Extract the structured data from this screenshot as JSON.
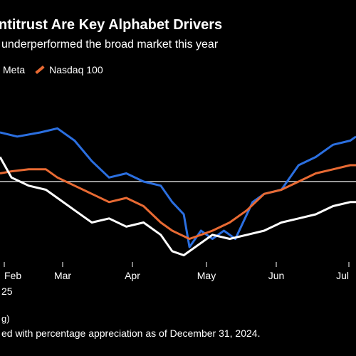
{
  "chart_data": {
    "type": "line",
    "title": "ntitrust Are Key Alphabet Drivers",
    "subtitle": "underperformed the broad market this year",
    "xlabel": "",
    "ylabel": "",
    "x_ticks": [
      "Feb",
      "Mar",
      "Apr",
      "May",
      "Jun",
      "Jul"
    ],
    "x_tick_sublabel": "25",
    "x_range": [
      0,
      124
    ],
    "ylim": [
      -20,
      20
    ],
    "baseline_y": 0,
    "legend_placement": "top-left",
    "grid": false,
    "series": [
      {
        "name": "Meta",
        "color": "#2b6fe0",
        "points": [
          [
            0,
            12
          ],
          [
            6,
            11
          ],
          [
            14,
            12
          ],
          [
            20,
            13
          ],
          [
            26,
            10
          ],
          [
            32,
            5
          ],
          [
            38,
            1
          ],
          [
            44,
            2
          ],
          [
            50,
            0
          ],
          [
            56,
            -1
          ],
          [
            60,
            -5
          ],
          [
            64,
            -8
          ],
          [
            66,
            -16
          ],
          [
            70,
            -12
          ],
          [
            74,
            -14
          ],
          [
            78,
            -12
          ],
          [
            82,
            -14
          ],
          [
            88,
            -5
          ],
          [
            92,
            -3
          ],
          [
            98,
            -2
          ],
          [
            104,
            4
          ],
          [
            110,
            6
          ],
          [
            116,
            9
          ],
          [
            122,
            10
          ],
          [
            124,
            11
          ]
        ]
      },
      {
        "name": "Nasdaq 100",
        "color": "#e86a33",
        "points": [
          [
            0,
            2
          ],
          [
            4,
            2.5
          ],
          [
            10,
            3
          ],
          [
            16,
            3
          ],
          [
            20,
            1
          ],
          [
            26,
            -1
          ],
          [
            32,
            -3
          ],
          [
            38,
            -5
          ],
          [
            44,
            -4
          ],
          [
            50,
            -6
          ],
          [
            56,
            -10
          ],
          [
            60,
            -12
          ],
          [
            66,
            -14
          ],
          [
            70,
            -13
          ],
          [
            74,
            -12
          ],
          [
            80,
            -10
          ],
          [
            86,
            -7
          ],
          [
            92,
            -3
          ],
          [
            98,
            -2
          ],
          [
            104,
            0
          ],
          [
            110,
            2
          ],
          [
            116,
            3
          ],
          [
            122,
            4
          ],
          [
            124,
            4
          ]
        ]
      },
      {
        "name": "",
        "color": "#ffffff",
        "points": [
          [
            0,
            6
          ],
          [
            4,
            1
          ],
          [
            10,
            -1
          ],
          [
            16,
            -2
          ],
          [
            20,
            -4
          ],
          [
            26,
            -7
          ],
          [
            32,
            -10
          ],
          [
            38,
            -9
          ],
          [
            44,
            -11
          ],
          [
            50,
            -10
          ],
          [
            56,
            -13
          ],
          [
            60,
            -17
          ],
          [
            64,
            -18
          ],
          [
            68,
            -16
          ],
          [
            74,
            -13
          ],
          [
            80,
            -14
          ],
          [
            86,
            -13
          ],
          [
            92,
            -12
          ],
          [
            98,
            -10
          ],
          [
            104,
            -9
          ],
          [
            110,
            -8
          ],
          [
            116,
            -6
          ],
          [
            122,
            -5
          ],
          [
            124,
            -5
          ]
        ]
      }
    ]
  },
  "legend": {
    "meta_label": "Meta",
    "nasdaq_label": "Nasdaq 100"
  },
  "footer": {
    "source": "g)",
    "note": "ed with percentage appreciation as of December 31, 2024."
  }
}
